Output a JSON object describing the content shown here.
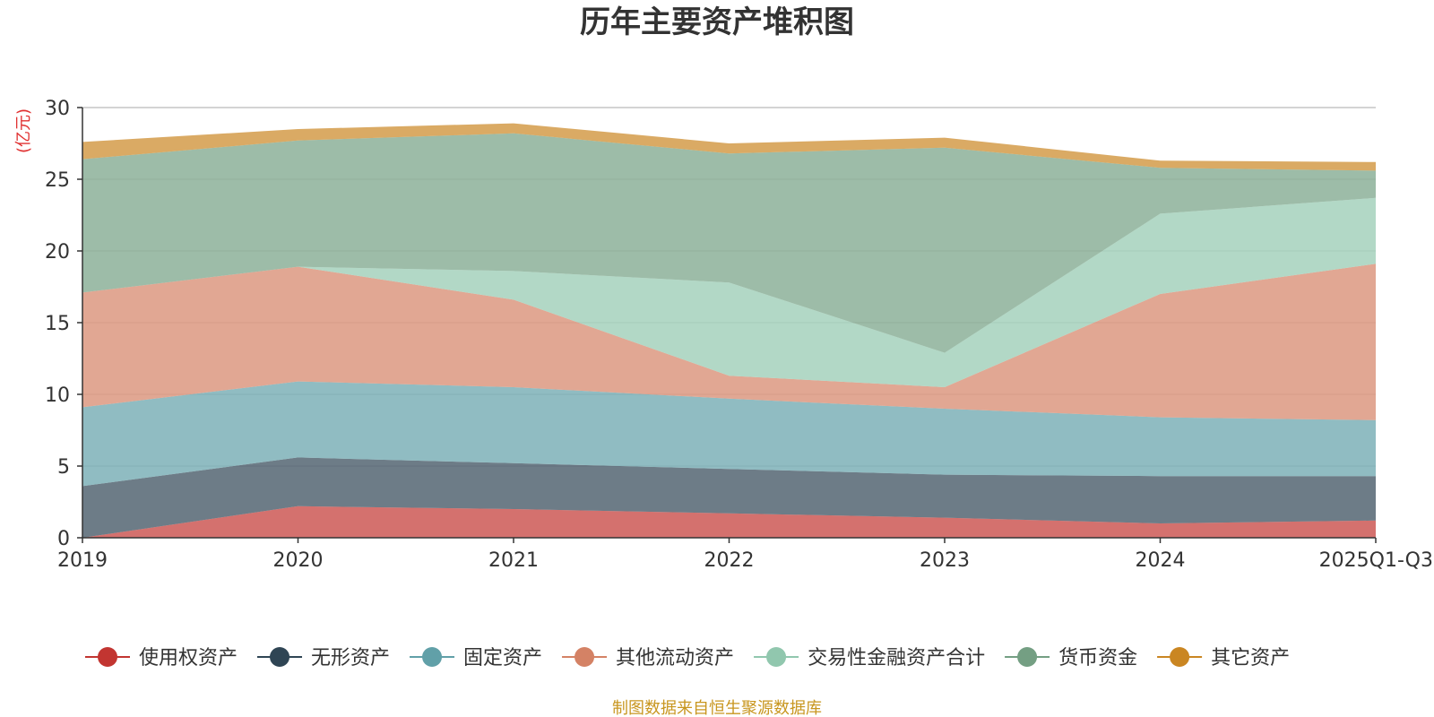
{
  "chart_data": {
    "type": "area",
    "stacked": true,
    "title": "历年主要资产堆积图",
    "ylabel": "(亿元)",
    "xlabel": "",
    "categories": [
      "2019",
      "2020",
      "2021",
      "2022",
      "2023",
      "2024",
      "2025Q1-Q3"
    ],
    "ylim": [
      0,
      30
    ],
    "yticks": [
      0,
      5,
      10,
      15,
      20,
      25,
      30
    ],
    "grid": true,
    "legend_position": "bottom",
    "series": [
      {
        "name": "使用权资产",
        "color": "#c23531",
        "values": [
          0.0,
          2.2,
          2.0,
          1.7,
          1.4,
          1.0,
          1.2
        ]
      },
      {
        "name": "无形资产",
        "color": "#2f4554",
        "values": [
          3.6,
          3.4,
          3.2,
          3.1,
          3.0,
          3.3,
          3.1
        ]
      },
      {
        "name": "固定资产",
        "color": "#61a0a8",
        "values": [
          5.5,
          5.3,
          5.3,
          4.9,
          4.6,
          4.1,
          3.9
        ]
      },
      {
        "name": "其他流动资产",
        "color": "#d48265",
        "values": [
          8.0,
          8.0,
          6.1,
          1.6,
          1.5,
          8.6,
          10.9
        ]
      },
      {
        "name": "交易性金融资产合计",
        "color": "#91c7ae",
        "values": [
          0.0,
          0.0,
          2.0,
          6.5,
          2.4,
          5.6,
          4.6
        ]
      },
      {
        "name": "货币资金",
        "color": "#749f83",
        "values": [
          9.3,
          8.8,
          9.6,
          9.0,
          14.3,
          3.2,
          1.9
        ]
      },
      {
        "name": "其它资产",
        "color": "#ca8622",
        "values": [
          1.2,
          0.8,
          0.7,
          0.7,
          0.7,
          0.5,
          0.6
        ]
      }
    ],
    "source": "制图数据来自恒生聚源数据库"
  }
}
